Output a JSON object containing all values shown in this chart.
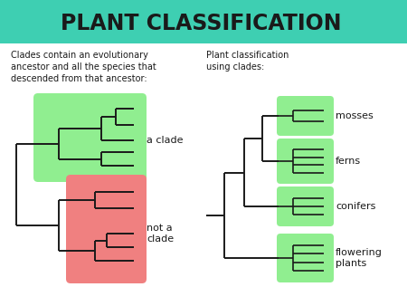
{
  "title": "PLANT CLASSIFICATION",
  "title_bg": "#3ecfb2",
  "title_fontsize": 17,
  "bg_color": "#ffffff",
  "left_text": "Clades contain an evolutionary\nancestor and all the species that\ndescended from that ancestor:",
  "right_text": "Plant classification\nusing clades:",
  "labels_right": [
    "mosses",
    "ferns",
    "conifers",
    "flowering\nplants"
  ],
  "label_clade": "a clade",
  "label_not_clade": "not a\nclade",
  "green_color": "#90ee90",
  "red_color": "#f08080",
  "line_color": "#1a1a1a",
  "text_color": "#1a1a1a"
}
